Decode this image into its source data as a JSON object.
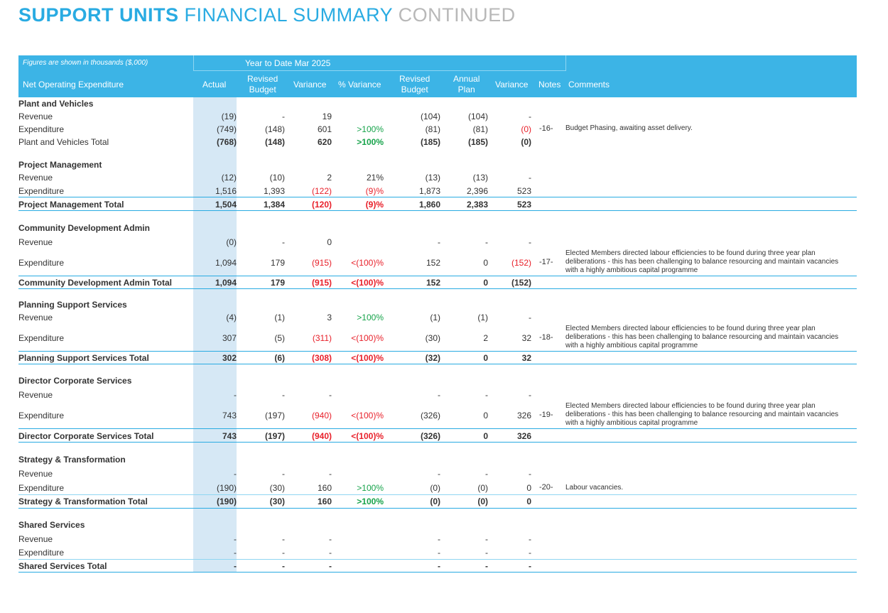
{
  "title": {
    "part1": "SUPPORT UNITS",
    "part2": "FINANCIAL SUMMARY",
    "part3": "CONTINUED"
  },
  "header": {
    "figures_note": "Figures are shown in thousands ($,000)",
    "period": "Year to Date Mar 2025",
    "net_operating": "Net Operating Expenditure",
    "actual": "Actual",
    "revised_budget": "Revised\nBudget",
    "variance": "Variance",
    "pct_variance": "% Variance",
    "revised_budget2": "Revised\nBudget",
    "annual_plan": "Annual\nPlan",
    "variance2": "Variance",
    "notes": "Notes",
    "comments": "Comments"
  },
  "comments": {
    "budget_phasing": "Budget Phasing, awaiting asset delivery.",
    "elected_members": "Elected Members directed labour efficiencies to be found during three year plan\ndeliberations - this has been challenging to balance resourcing and maintain vacancies\nwith a highly ambitious capital programme",
    "labour": "Labour vacancies."
  },
  "rows": [
    {
      "label": "Plant and Vehicles",
      "type": "section"
    },
    {
      "label": "Revenue",
      "vals": [
        "(19)",
        "-",
        "19",
        "",
        "(104)",
        "(104)",
        "-"
      ],
      "note": "",
      "comment": ""
    },
    {
      "label": "Expenditure",
      "vals": [
        "(749)",
        "(148)",
        "601",
        ">100%",
        "(81)",
        "(81)",
        "(0)"
      ],
      "note": "-16-",
      "comment": "Budget Phasing, awaiting asset delivery."
    },
    {
      "label": "Plant and Vehicles Total",
      "type": "total-plain",
      "vals": [
        "(768)",
        "(148)",
        "620",
        ">100%",
        "(185)",
        "(185)",
        "(0)"
      ]
    },
    {
      "label": "Project Management",
      "type": "section"
    },
    {
      "label": "Revenue",
      "vals": [
        "(12)",
        "(10)",
        "2",
        "21%",
        "(13)",
        "(13)",
        "-"
      ]
    },
    {
      "label": "Expenditure",
      "vals": [
        "1,516",
        "1,393",
        "(122)",
        "(9)%",
        "1,873",
        "2,396",
        "523"
      ]
    },
    {
      "label": "Project Management Total",
      "type": "total",
      "vals": [
        "1,504",
        "1,384",
        "(120)",
        "(9)%",
        "1,860",
        "2,383",
        "523"
      ]
    },
    {
      "label": "Community Development Admin",
      "type": "section"
    },
    {
      "label": "Revenue",
      "vals": [
        "(0)",
        "-",
        "0",
        "",
        "-",
        "-",
        "-"
      ]
    },
    {
      "label": "Expenditure",
      "vals": [
        "1,094",
        "179",
        "(915)",
        "<(100)%",
        "152",
        "0",
        "(152)"
      ],
      "note": "-17-"
    },
    {
      "label": "Community Development Admin Total",
      "type": "total",
      "vals": [
        "1,094",
        "179",
        "(915)",
        "<(100)%",
        "152",
        "0",
        "(152)"
      ]
    },
    {
      "label": "Planning Support Services",
      "type": "section"
    },
    {
      "label": "Revenue",
      "vals": [
        "(4)",
        "(1)",
        "3",
        ">100%",
        "(1)",
        "(1)",
        "-"
      ]
    },
    {
      "label": "Expenditure",
      "vals": [
        "307",
        "(5)",
        "(311)",
        "<(100)%",
        "(30)",
        "2",
        "32"
      ],
      "note": "-18-"
    },
    {
      "label": "Planning Support Services Total",
      "type": "total",
      "vals": [
        "302",
        "(6)",
        "(308)",
        "<(100)%",
        "(32)",
        "0",
        "32"
      ]
    },
    {
      "label": "Director Corporate Services",
      "type": "section"
    },
    {
      "label": "Revenue",
      "vals": [
        "-",
        "-",
        "-",
        "",
        "-",
        "-",
        "-"
      ]
    },
    {
      "label": "Expenditure",
      "vals": [
        "743",
        "(197)",
        "(940)",
        "<(100)%",
        "(326)",
        "0",
        "326"
      ],
      "note": "-19-"
    },
    {
      "label": "Director Corporate Services Total",
      "type": "total",
      "vals": [
        "743",
        "(197)",
        "(940)",
        "<(100)%",
        "(326)",
        "0",
        "326"
      ]
    },
    {
      "label": "Strategy & Transformation",
      "type": "section"
    },
    {
      "label": "Revenue",
      "vals": [
        "-",
        "-",
        "-",
        "",
        "-",
        "-",
        "-"
      ]
    },
    {
      "label": "Expenditure",
      "vals": [
        "(190)",
        "(30)",
        "160",
        ">100%",
        "(0)",
        "(0)",
        "0"
      ],
      "note": "-20-",
      "comment": "Labour vacancies."
    },
    {
      "label": "Strategy & Transformation Total",
      "type": "total",
      "vals": [
        "(190)",
        "(30)",
        "160",
        ">100%",
        "(0)",
        "(0)",
        "0"
      ]
    },
    {
      "label": "Shared Services",
      "type": "section"
    },
    {
      "label": "Revenue",
      "vals": [
        "-",
        "-",
        "-",
        "",
        "-",
        "-",
        "-"
      ]
    },
    {
      "label": "Expenditure",
      "vals": [
        "-",
        "-",
        "-",
        "",
        "-",
        "-",
        "-"
      ]
    },
    {
      "label": "Shared Services Total",
      "type": "total",
      "vals": [
        "-",
        "-",
        "-",
        "",
        "-",
        "-",
        "-"
      ]
    }
  ],
  "colors": {
    "accent": "#3cb4e6",
    "highlight": "#d6e8f5",
    "negative": "#e8202a",
    "positive": "#16a34a"
  }
}
